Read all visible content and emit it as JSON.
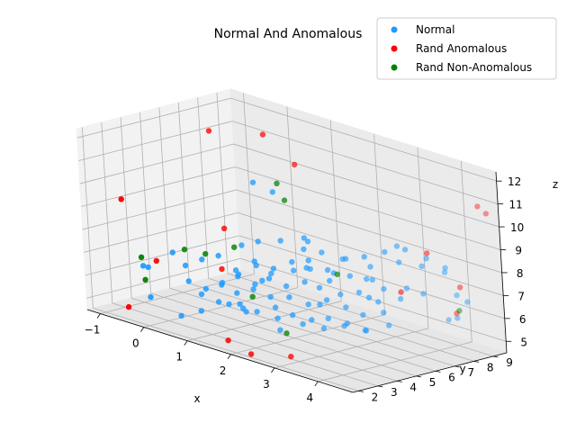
{
  "chart_data": {
    "type": "scatter",
    "projection": "3d",
    "title": "Normal And Anomalous",
    "xlabel": "x",
    "ylabel": "y",
    "zlabel": "z",
    "x_ticks": [
      "−1",
      "0",
      "1",
      "2",
      "3",
      "4"
    ],
    "y_ticks": [
      "2",
      "3",
      "4",
      "5",
      "6",
      "7",
      "8",
      "9"
    ],
    "z_ticks": [
      "5",
      "6",
      "7",
      "8",
      "9",
      "10",
      "11",
      "12"
    ],
    "xlim": [
      -1.3,
      4.8
    ],
    "ylim": [
      1.7,
      9.7
    ],
    "zlim": [
      4.5,
      12.4
    ],
    "grid": true,
    "legend": {
      "placement": "top-right"
    },
    "series": [
      {
        "name": "Normal",
        "color": "#1f9bff",
        "points": [
          [
            1.2,
            5.1,
            10.8
          ],
          [
            1.6,
            5.2,
            10.6
          ],
          [
            2.0,
            5.8,
            8.7
          ],
          [
            1.9,
            6.2,
            8.4
          ],
          [
            2.3,
            6.0,
            8.2
          ],
          [
            2.6,
            6.4,
            8.0
          ],
          [
            1.1,
            5.4,
            8.1
          ],
          [
            0.8,
            5.2,
            7.8
          ],
          [
            1.4,
            5.9,
            8.2
          ],
          [
            1.7,
            6.4,
            7.9
          ],
          [
            2.2,
            5.4,
            7.6
          ],
          [
            2.6,
            5.9,
            7.5
          ],
          [
            3.1,
            6.7,
            7.9
          ],
          [
            3.5,
            7.3,
            8.2
          ],
          [
            3.8,
            7.8,
            8.1
          ],
          [
            4.1,
            8.3,
            7.9
          ],
          [
            3.2,
            7.9,
            8.6
          ],
          [
            2.9,
            7.2,
            7.1
          ],
          [
            1.3,
            4.8,
            7.3
          ],
          [
            1.5,
            5.1,
            7.0
          ],
          [
            1.8,
            5.6,
            7.2
          ],
          [
            2.1,
            5.8,
            7.4
          ],
          [
            2.4,
            6.1,
            7.0
          ],
          [
            2.7,
            6.5,
            7.3
          ],
          [
            2.9,
            6.9,
            7.2
          ],
          [
            3.2,
            7.1,
            6.9
          ],
          [
            3.6,
            7.4,
            7.1
          ],
          [
            3.8,
            7.8,
            6.9
          ],
          [
            0.9,
            4.7,
            6.6
          ],
          [
            1.2,
            4.9,
            6.4
          ],
          [
            1.4,
            5.2,
            6.7
          ],
          [
            1.7,
            5.4,
            6.5
          ],
          [
            2.0,
            5.7,
            6.8
          ],
          [
            2.2,
            6.0,
            6.6
          ],
          [
            2.5,
            6.4,
            6.4
          ],
          [
            2.8,
            6.7,
            6.6
          ],
          [
            3.1,
            7.0,
            6.3
          ],
          [
            3.4,
            7.5,
            6.5
          ],
          [
            0.6,
            4.5,
            6.1
          ],
          [
            0.9,
            4.6,
            5.9
          ],
          [
            1.2,
            4.8,
            6.2
          ],
          [
            1.5,
            5.0,
            6.0
          ],
          [
            1.8,
            5.3,
            6.1
          ],
          [
            2.1,
            5.6,
            5.9
          ],
          [
            2.4,
            5.9,
            6.2
          ],
          [
            2.7,
            6.2,
            6.0
          ],
          [
            3.0,
            6.4,
            5.8
          ],
          [
            3.3,
            6.8,
            6.0
          ],
          [
            0.3,
            4.1,
            5.6
          ],
          [
            0.6,
            4.3,
            5.4
          ],
          [
            1.0,
            4.5,
            5.5
          ],
          [
            1.3,
            4.7,
            5.3
          ],
          [
            1.6,
            5.0,
            5.6
          ],
          [
            1.9,
            5.2,
            5.4
          ],
          [
            2.2,
            5.5,
            5.3
          ],
          [
            2.5,
            5.7,
            5.5
          ],
          [
            2.8,
            6.0,
            5.4
          ],
          [
            3.1,
            6.3,
            5.2
          ],
          [
            3.5,
            6.6,
            5.6
          ],
          [
            0.1,
            3.8,
            6.8
          ],
          [
            0.4,
            4.0,
            7.2
          ],
          [
            0.7,
            4.2,
            7.5
          ],
          [
            1.0,
            4.4,
            7.0
          ],
          [
            0.2,
            3.7,
            6.2
          ],
          [
            0.5,
            3.9,
            6.0
          ],
          [
            0.8,
            4.1,
            6.4
          ],
          [
            1.1,
            4.3,
            6.9
          ],
          [
            1.4,
            4.5,
            7.6
          ],
          [
            1.7,
            4.8,
            7.4
          ],
          [
            2.0,
            5.1,
            7.8
          ],
          [
            2.3,
            5.3,
            8.0
          ],
          [
            2.6,
            5.6,
            7.7
          ],
          [
            2.9,
            5.9,
            8.3
          ],
          [
            3.2,
            6.2,
            8.5
          ],
          [
            3.5,
            6.6,
            8.8
          ],
          [
            3.8,
            7.0,
            9.0
          ],
          [
            4.1,
            7.4,
            8.7
          ],
          [
            4.3,
            7.9,
            8.3
          ],
          [
            4.4,
            8.2,
            7.1
          ],
          [
            4.5,
            8.5,
            6.8
          ],
          [
            4.2,
            8.6,
            5.9
          ],
          [
            3.9,
            8.8,
            5.6
          ],
          [
            1.9,
            5.7,
            4.9
          ],
          [
            2.2,
            6.1,
            4.8
          ],
          [
            2.5,
            6.5,
            5.0
          ],
          [
            2.8,
            6.9,
            4.9
          ],
          [
            1.5,
            5.3,
            5.0
          ],
          [
            1.0,
            4.8,
            5.1
          ],
          [
            0.7,
            4.6,
            5.3
          ],
          [
            -0.8,
            3.6,
            6.3
          ],
          [
            -0.5,
            3.2,
            6.5
          ],
          [
            0.0,
            3.4,
            7.4
          ],
          [
            3.3,
            6.1,
            6.8
          ],
          [
            2.6,
            5.1,
            6.3
          ],
          [
            1.6,
            4.4,
            6.9
          ],
          [
            1.3,
            4.0,
            5.6
          ],
          [
            0.5,
            3.6,
            5.1
          ],
          [
            -0.3,
            2.8,
            5.4
          ],
          [
            0.3,
            3.0,
            4.9
          ],
          [
            2.0,
            4.3,
            5.0
          ]
        ]
      },
      {
        "name": "Rand Anomalous",
        "color": "#ff0000",
        "points": [
          [
            -0.4,
            6.5,
            11.8
          ],
          [
            0.4,
            7.5,
            11.9
          ],
          [
            1.1,
            7.5,
            11.0
          ],
          [
            -0.9,
            2.9,
            9.3
          ],
          [
            0.6,
            4.8,
            8.5
          ],
          [
            4.5,
            9.3,
            10.8
          ],
          [
            4.6,
            9.5,
            10.5
          ],
          [
            3.8,
            8.1,
            8.6
          ],
          [
            3.6,
            7.1,
            7.0
          ],
          [
            4.3,
            8.6,
            7.3
          ],
          [
            4.1,
            8.8,
            6.0
          ],
          [
            -0.3,
            3.2,
            6.9
          ],
          [
            0.9,
            3.9,
            7.1
          ],
          [
            -0.6,
            2.3,
            4.9
          ],
          [
            1.5,
            2.7,
            4.6
          ],
          [
            2.2,
            2.3,
            4.5
          ],
          [
            2.9,
            2.8,
            4.7
          ]
        ]
      },
      {
        "name": "Rand Non-Anomalous",
        "color": "#008000",
        "points": [
          [
            1.3,
            6.1,
            10.6
          ],
          [
            1.5,
            6.0,
            10.0
          ],
          [
            0.9,
            4.6,
            7.9
          ],
          [
            0.1,
            3.8,
            7.5
          ],
          [
            0.4,
            4.2,
            7.4
          ],
          [
            -0.6,
            3.1,
            6.9
          ],
          [
            -0.4,
            2.8,
            6.1
          ],
          [
            2.5,
            6.3,
            7.3
          ],
          [
            1.4,
            4.3,
            6.1
          ],
          [
            4.3,
            8.5,
            6.3
          ],
          [
            2.1,
            4.4,
            4.9
          ]
        ]
      }
    ]
  }
}
